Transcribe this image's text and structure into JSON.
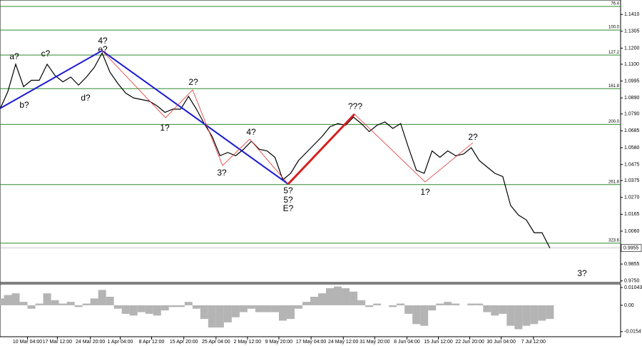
{
  "chart_data": [
    {
      "type": "line",
      "x": [
        0,
        1,
        2,
        3,
        4,
        5,
        6,
        7,
        8,
        9,
        10,
        11,
        12,
        13,
        14,
        15,
        16,
        17,
        18,
        19,
        20,
        21,
        22,
        23,
        24,
        25,
        26,
        27,
        28,
        29,
        30,
        31,
        32,
        33,
        34,
        35,
        36,
        37,
        38,
        39,
        40,
        41,
        42,
        43,
        44,
        45,
        46,
        47,
        48,
        49,
        50,
        51,
        52,
        53,
        54,
        55,
        56,
        57,
        58,
        59,
        60,
        61,
        62,
        63,
        64,
        65,
        66,
        67,
        68,
        69,
        70
      ],
      "series": [
        {
          "color": "#000000",
          "values": [
            1.082,
            1.093,
            1.11,
            1.096,
            1.1,
            1.1,
            1.11,
            1.103,
            1.099,
            1.102,
            1.097,
            1.102,
            1.108,
            1.117,
            1.105,
            1.098,
            1.092,
            1.089,
            1.088,
            1.087,
            1.084,
            1.08,
            1.082,
            1.082,
            1.09,
            1.082,
            1.073,
            1.065,
            1.053,
            1.055,
            1.053,
            1.057,
            1.062,
            1.057,
            1.056,
            1.052,
            1.038,
            1.042,
            1.05,
            1.055,
            1.06,
            1.065,
            1.071,
            1.073,
            1.072,
            1.077,
            1.073,
            1.068,
            1.072,
            1.074,
            1.07,
            1.073,
            1.058,
            1.044,
            1.042,
            1.056,
            1.052,
            1.056,
            1.053,
            1.054,
            1.058,
            1.05,
            1.046,
            1.042,
            1.04,
            1.022,
            1.016,
            1.013,
            1.005,
            1.005,
            0.9955
          ]
        }
      ],
      "xlim": [
        0,
        79
      ],
      "xticks": [
        {
          "value": 3.5,
          "label": "10 Mar 04:00"
        },
        {
          "value": 7.3,
          "label": "17 Mar 12:00"
        },
        {
          "value": 11.5,
          "label": "24 Mar 20:00"
        },
        {
          "value": 15.3,
          "label": "1 Apr 04:00"
        },
        {
          "value": 19.3,
          "label": "8 Apr 12:00"
        },
        {
          "value": 23.4,
          "label": "15 Apr 20:00"
        },
        {
          "value": 27.5,
          "label": "25 Apr 04:00"
        },
        {
          "value": 31.5,
          "label": "2 May 12:00"
        },
        {
          "value": 35.5,
          "label": "9 May 20:00"
        },
        {
          "value": 39.6,
          "label": "17 May 04:00"
        },
        {
          "value": 43.7,
          "label": "24 May 12:00"
        },
        {
          "value": 47.7,
          "label": "31 May 20:00"
        },
        {
          "value": 51.8,
          "label": "8 Jun 04:00"
        },
        {
          "value": 55.8,
          "label": "15 Jun 12:00"
        },
        {
          "value": 59.8,
          "label": "22 Jun 20:00"
        },
        {
          "value": 63.8,
          "label": "30 Jun 04:00"
        },
        {
          "value": 67.9,
          "label": "7 Jul 12:00"
        }
      ],
      "ylim": [
        0.974,
        1.15
      ],
      "yticks": [
        {
          "value": 1.141,
          "label": "1.1410"
        },
        {
          "value": 1.1305,
          "label": "1.1305"
        },
        {
          "value": 1.12,
          "label": "1.1200"
        },
        {
          "value": 1.11,
          "label": "1.1100"
        },
        {
          "value": 1.0995,
          "label": "1.0995"
        },
        {
          "value": 1.089,
          "label": "1.0890"
        },
        {
          "value": 1.079,
          "label": "1.0790"
        },
        {
          "value": 1.0685,
          "label": "1.0685"
        },
        {
          "value": 1.058,
          "label": "1.0580"
        },
        {
          "value": 1.0475,
          "label": "1.0475"
        },
        {
          "value": 1.0375,
          "label": "1.0375"
        },
        {
          "value": 1.027,
          "label": "1.0270"
        },
        {
          "value": 1.0165,
          "label": "1.0165"
        },
        {
          "value": 1.006,
          "label": "1.0060"
        },
        {
          "value": 0.9855,
          "label": "0.9855"
        },
        {
          "value": 0.975,
          "label": "0.9750"
        }
      ],
      "current_price": 0.9955,
      "levels": [
        {
          "value": 1.146,
          "label": "76.4"
        },
        {
          "value": 1.1313,
          "label": "100.0"
        },
        {
          "value": 1.1157,
          "label": "127.2"
        },
        {
          "value": 1.0948,
          "label": "161.8"
        },
        {
          "value": 1.0725,
          "label": "200.0"
        },
        {
          "value": 1.035,
          "label": "261.8"
        },
        {
          "value": 0.9985,
          "label": "323.6"
        }
      ],
      "level_color": "#2e8b2e",
      "annotations": [
        {
          "text": "a?",
          "color": "#d42020"
        },
        {
          "text": "b?",
          "color": "#d42020"
        },
        {
          "text": "c?",
          "color": "#d42020"
        },
        {
          "text": "d?",
          "color": "#d42020"
        },
        {
          "text": "4?",
          "color": "#1a1ad4"
        },
        {
          "text": "e?",
          "color": "#d42020"
        },
        {
          "text": "1?",
          "color": "#d42020"
        },
        {
          "text": "2?",
          "color": "#d42020"
        },
        {
          "text": "3?",
          "color": "#d42020"
        },
        {
          "text": "4?",
          "color": "#d42020"
        },
        {
          "text": "5?",
          "color": "#d42020"
        },
        {
          "text": "5?",
          "color": "#1a1ad4"
        },
        {
          "text": "E?",
          "color": "#d42020"
        },
        {
          "text": "???",
          "color": "#d42020"
        },
        {
          "text": "1?",
          "color": "#d42020"
        },
        {
          "text": "2?",
          "color": "#d42020"
        },
        {
          "text": "3?",
          "color": "#d42020"
        }
      ]
    },
    {
      "type": "bar",
      "x": [
        0,
        1,
        2,
        3,
        4,
        5,
        6,
        7,
        8,
        9,
        10,
        11,
        12,
        13,
        14,
        15,
        16,
        17,
        18,
        19,
        20,
        21,
        22,
        23,
        24,
        25,
        26,
        27,
        28,
        29,
        30,
        31,
        32,
        33,
        34,
        35,
        36,
        37,
        38,
        39,
        40,
        41,
        42,
        43,
        44,
        45,
        46,
        47,
        48,
        49,
        50,
        51,
        52,
        53,
        54,
        55,
        56,
        57,
        58,
        59,
        60,
        61,
        62,
        63,
        64,
        65,
        66,
        67,
        68,
        69,
        70
      ],
      "values": [
        0.004,
        0.006,
        0.007,
        0.002,
        -0.002,
        0.001,
        0.007,
        0.003,
        0.001,
        0.002,
        -0.001,
        0.001,
        0.004,
        0.009,
        0.005,
        -0.002,
        -0.005,
        -0.006,
        -0.004,
        -0.005,
        -0.006,
        -0.003,
        -0.001,
        -0.001,
        0.002,
        -0.002,
        -0.008,
        -0.013,
        -0.013,
        -0.01,
        -0.007,
        -0.004,
        -0.002,
        -0.004,
        -0.004,
        -0.004,
        -0.009,
        -0.008,
        -0.002,
        0.002,
        0.005,
        0.007,
        0.01,
        0.011,
        0.01,
        0.008,
        0.003,
        -0.001,
        0.001,
        0.0,
        -0.001,
        0.001,
        -0.005,
        -0.011,
        -0.012,
        -0.003,
        0.001,
        0.002,
        0.001,
        0.0,
        0.001,
        0.001,
        -0.004,
        -0.006,
        -0.005,
        -0.012,
        -0.014,
        -0.012,
        -0.011,
        -0.009,
        -0.008
      ],
      "color": "#b4b4b4",
      "xlim": [
        0,
        79
      ],
      "ylim": [
        -0.0184,
        0.0125
      ],
      "yticks": [
        0.01043,
        {
          "value": 0,
          "label": "0.00"
        },
        -0.0154
      ]
    }
  ]
}
